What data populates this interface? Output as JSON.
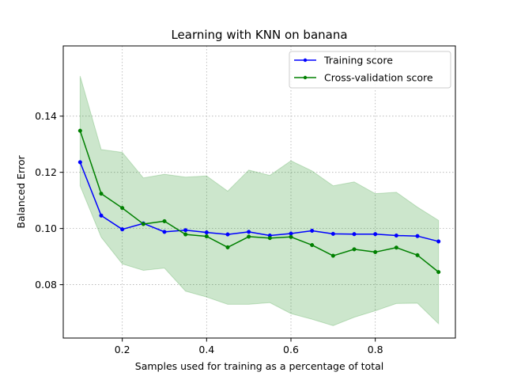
{
  "chart_data": {
    "type": "line",
    "title": "Learning with KNN on banana",
    "xlabel": "Samples used for training as a percentage of total",
    "ylabel": "Balanced Error",
    "xlim": [
      0.06,
      0.99
    ],
    "ylim": [
      0.061,
      0.165
    ],
    "xticks": [
      0.2,
      0.4,
      0.6,
      0.8
    ],
    "xtick_labels": [
      "0.2",
      "0.4",
      "0.6",
      "0.8"
    ],
    "yticks": [
      0.08,
      0.1,
      0.12,
      0.14
    ],
    "ytick_labels": [
      "0.08",
      "0.10",
      "0.12",
      "0.14"
    ],
    "grid": true,
    "legend_position": "top-right",
    "x": [
      0.1,
      0.15,
      0.2,
      0.25,
      0.3,
      0.35,
      0.4,
      0.45,
      0.5,
      0.55,
      0.6,
      0.65,
      0.7,
      0.75,
      0.8,
      0.85,
      0.9,
      0.95
    ],
    "series": [
      {
        "name": "Training score",
        "color": "#0000ff",
        "values": [
          0.1236,
          0.1046,
          0.0997,
          0.1018,
          0.0988,
          0.0994,
          0.0986,
          0.0979,
          0.0988,
          0.0975,
          0.0982,
          0.0992,
          0.0981,
          0.098,
          0.098,
          0.0975,
          0.0973,
          0.0954
        ]
      },
      {
        "name": "Cross-validation score",
        "color": "#008000",
        "values": [
          0.1348,
          0.1124,
          0.1073,
          0.1016,
          0.1026,
          0.0979,
          0.0972,
          0.0933,
          0.0971,
          0.0966,
          0.097,
          0.0941,
          0.0903,
          0.0926,
          0.0916,
          0.0932,
          0.0905,
          0.0845
        ],
        "band_upper": [
          0.1543,
          0.1281,
          0.1271,
          0.118,
          0.1193,
          0.1183,
          0.1187,
          0.1133,
          0.1208,
          0.1189,
          0.1241,
          0.1205,
          0.1152,
          0.1166,
          0.1124,
          0.1129,
          0.1076,
          0.1029
        ],
        "band_lower": [
          0.1152,
          0.0969,
          0.0874,
          0.0851,
          0.0859,
          0.0777,
          0.0756,
          0.073,
          0.073,
          0.0736,
          0.0697,
          0.0677,
          0.0654,
          0.0684,
          0.0707,
          0.0733,
          0.0734,
          0.0661
        ],
        "band_color": "#008000"
      }
    ]
  }
}
